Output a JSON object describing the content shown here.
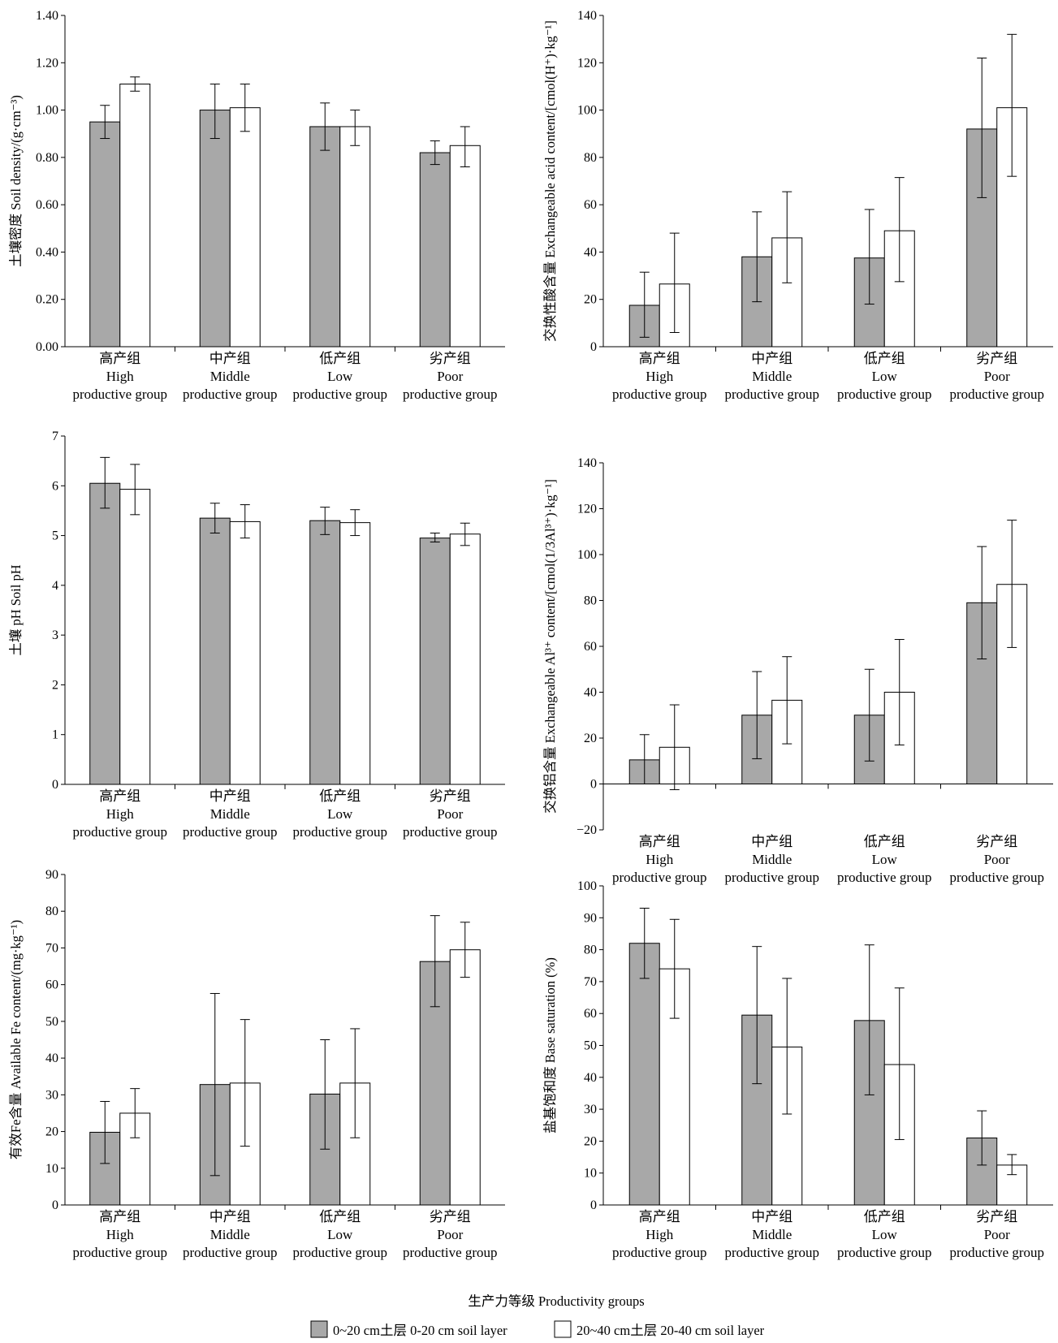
{
  "colors": {
    "layer_0_20": "#a8a8a8",
    "layer_20_40": "#ffffff",
    "stroke": "#000000"
  },
  "categories": [
    [
      "高产组",
      "High",
      "productive group"
    ],
    [
      "中产组",
      "Middle",
      "productive group"
    ],
    [
      "低产组",
      "Low",
      "productive group"
    ],
    [
      "劣产组",
      "Poor",
      "productive group"
    ]
  ],
  "legend": {
    "layer_0_20": "0~20 cm土层  0-20 cm soil layer",
    "layer_20_40": "20~40 cm土层  20-40 cm soil layer"
  },
  "shared_xlabel": "生产力等级 Productivity groups",
  "chart_data": [
    {
      "type": "bar",
      "id": "soil-density",
      "ylabel": "土壤密度 Soil density/(g·cm⁻³)",
      "ylim": [
        0,
        1.4
      ],
      "yticks": [
        "0.00",
        "0.20",
        "0.40",
        "0.60",
        "0.80",
        "1.00",
        "1.20",
        "1.40"
      ],
      "ytick_values": [
        0,
        0.2,
        0.4,
        0.6,
        0.8,
        1.0,
        1.2,
        1.4
      ],
      "series": [
        {
          "name": "0~20 cm土层",
          "values": [
            0.95,
            1.0,
            0.93,
            0.82
          ],
          "err_low": [
            0.88,
            0.88,
            0.83,
            0.77
          ],
          "err_high": [
            1.02,
            1.11,
            1.03,
            0.87
          ]
        },
        {
          "name": "20~40 cm土层",
          "values": [
            1.11,
            1.01,
            0.93,
            0.85
          ],
          "err_low": [
            1.08,
            0.91,
            0.85,
            0.76
          ],
          "err_high": [
            1.14,
            1.11,
            1.0,
            0.93
          ]
        }
      ]
    },
    {
      "type": "bar",
      "id": "exchangeable-acid",
      "ylabel": "交换性酸含量 Exchangeable acid content/[cmol(H⁺)·kg⁻¹]",
      "ylim": [
        0,
        140
      ],
      "yticks": [
        "0",
        "20",
        "40",
        "60",
        "80",
        "100",
        "120",
        "140"
      ],
      "ytick_values": [
        0,
        20,
        40,
        60,
        80,
        100,
        120,
        140
      ],
      "series": [
        {
          "name": "0~20 cm土层",
          "values": [
            17.5,
            38,
            37.5,
            92
          ],
          "err_low": [
            4,
            19,
            18,
            63
          ],
          "err_high": [
            31.5,
            57,
            58,
            122
          ]
        },
        {
          "name": "20~40 cm土层",
          "values": [
            26.5,
            46,
            49,
            101
          ],
          "err_low": [
            6,
            27,
            27.5,
            72
          ],
          "err_high": [
            48,
            65.5,
            71.5,
            132
          ]
        }
      ]
    },
    {
      "type": "bar",
      "id": "soil-ph",
      "ylabel": "土壤 pH Soil pH",
      "ylim": [
        0,
        7
      ],
      "yticks": [
        "0",
        "1",
        "2",
        "3",
        "4",
        "5",
        "6",
        "7"
      ],
      "ytick_values": [
        0,
        1,
        2,
        3,
        4,
        5,
        6,
        7
      ],
      "series": [
        {
          "name": "0~20 cm土层",
          "values": [
            6.05,
            5.35,
            5.3,
            4.95
          ],
          "err_low": [
            5.55,
            5.05,
            5.02,
            4.87
          ],
          "err_high": [
            6.57,
            5.65,
            5.57,
            5.05
          ]
        },
        {
          "name": "20~40 cm土层",
          "values": [
            5.93,
            5.28,
            5.26,
            5.03
          ],
          "err_low": [
            5.42,
            4.95,
            5.0,
            4.8
          ],
          "err_high": [
            6.43,
            5.62,
            5.52,
            5.25
          ]
        }
      ]
    },
    {
      "type": "bar",
      "id": "exchangeable-al",
      "ylabel": "交换铝含量 Exchangeable Al³⁺ content/[cmol(1/3Al³⁺)·kg⁻¹]",
      "ylim": [
        -20,
        140
      ],
      "yticks": [
        "−20",
        "0",
        "20",
        "40",
        "60",
        "80",
        "100",
        "120",
        "140"
      ],
      "ytick_values": [
        -20,
        0,
        20,
        40,
        60,
        80,
        100,
        120,
        140
      ],
      "series": [
        {
          "name": "0~20 cm土层",
          "values": [
            10.5,
            30,
            30,
            79
          ],
          "err_low": [
            0,
            11,
            10,
            54.5
          ],
          "err_high": [
            21.5,
            49,
            50,
            103.5
          ]
        },
        {
          "name": "20~40 cm土层",
          "values": [
            16,
            36.5,
            40,
            87
          ],
          "err_low": [
            -2.5,
            17.5,
            17,
            59.5
          ],
          "err_high": [
            34.5,
            55.5,
            63,
            115
          ]
        }
      ]
    },
    {
      "type": "bar",
      "id": "available-fe",
      "ylabel": "有效Fe含量 Available Fe content/(mg·kg⁻¹)",
      "ylim": [
        0,
        90
      ],
      "yticks": [
        "0",
        "10",
        "20",
        "30",
        "40",
        "50",
        "60",
        "70",
        "80",
        "90"
      ],
      "ytick_values": [
        0,
        10,
        20,
        30,
        40,
        50,
        60,
        70,
        80,
        90
      ],
      "series": [
        {
          "name": "0~20 cm土层",
          "values": [
            19.8,
            32.8,
            30.2,
            66.3
          ],
          "err_low": [
            11.3,
            8.0,
            15.2,
            54.0
          ],
          "err_high": [
            28.2,
            57.6,
            45.0,
            78.8
          ]
        },
        {
          "name": "20~40 cm土层",
          "values": [
            25.0,
            33.2,
            33.2,
            69.5
          ],
          "err_low": [
            18.3,
            16.0,
            18.3,
            62.0
          ],
          "err_high": [
            31.7,
            50.5,
            48.0,
            77.0
          ]
        }
      ]
    },
    {
      "type": "bar",
      "id": "base-saturation",
      "ylabel": "盐基饱和度 Base saturation (%)",
      "ylim": [
        0,
        100
      ],
      "yticks": [
        "0",
        "10",
        "20",
        "30",
        "40",
        "50",
        "60",
        "70",
        "80",
        "90",
        "100"
      ],
      "ytick_values": [
        0,
        10,
        20,
        30,
        40,
        50,
        60,
        70,
        80,
        90,
        100
      ],
      "series": [
        {
          "name": "0~20 cm土层",
          "values": [
            82,
            59.5,
            57.8,
            21
          ],
          "err_low": [
            71,
            38,
            34.5,
            12.5
          ],
          "err_high": [
            93,
            81,
            81.5,
            29.5
          ]
        },
        {
          "name": "20~40 cm土层",
          "values": [
            74,
            49.5,
            44,
            12.5
          ],
          "err_low": [
            58.5,
            28.5,
            20.5,
            9.5
          ],
          "err_high": [
            89.5,
            71,
            68,
            15.8
          ]
        }
      ]
    }
  ]
}
